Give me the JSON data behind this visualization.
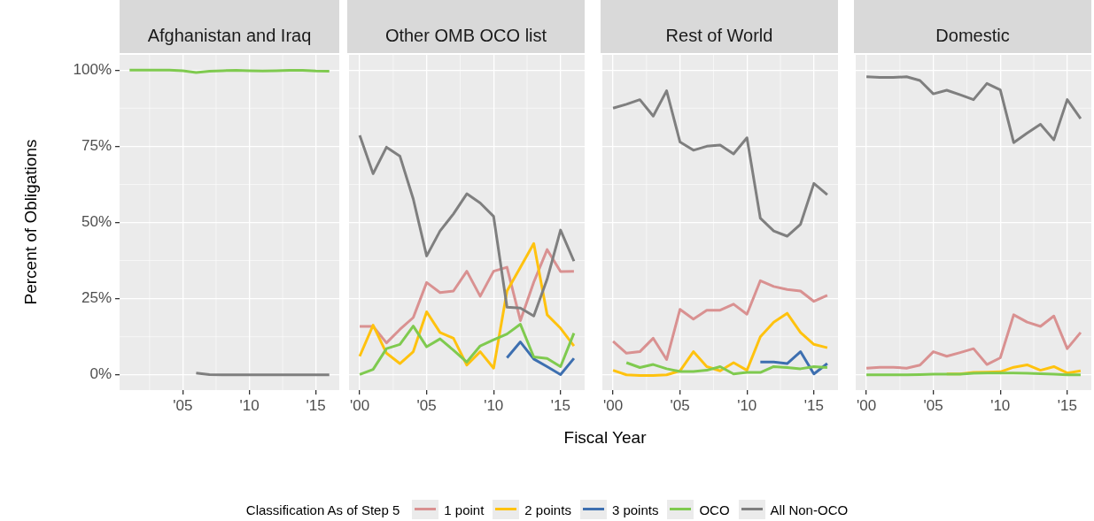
{
  "chart_data": [
    {
      "type": "line",
      "title": "Afghanistan and Iraq",
      "ylabel": "Percent of Obligations",
      "xlim": [
        2000.25,
        2016.75
      ],
      "xticks": [
        {
          "value": 2005,
          "label": "'05"
        },
        {
          "value": 2010,
          "label": "'10"
        },
        {
          "value": 2015,
          "label": "'15"
        }
      ],
      "ylim": [
        -5,
        105
      ],
      "yticks": [
        {
          "value": 0,
          "label": "0%"
        },
        {
          "value": 25,
          "label": "25%"
        },
        {
          "value": 50,
          "label": "50%"
        },
        {
          "value": 75,
          "label": "75%"
        },
        {
          "value": 100,
          "label": "100%"
        }
      ],
      "grid": true,
      "marker": "none",
      "line_style": "solid",
      "series": [
        {
          "color": "#7fca4f",
          "x": [
            2001,
            2002,
            2003,
            2004,
            2005,
            2006,
            2007,
            2008,
            2009,
            2010,
            2011,
            2012,
            2013,
            2014,
            2015,
            2016
          ],
          "values": [
            100,
            100,
            100,
            100,
            99.8,
            99.2,
            99.6,
            99.8,
            99.9,
            99.8,
            99.7,
            99.8,
            99.9,
            99.9,
            99.7,
            99.6
          ]
        },
        {
          "color": "#7f7f7f",
          "x": [
            2006,
            2007,
            2008,
            2009,
            2010,
            2011,
            2012,
            2013,
            2014,
            2015,
            2016
          ],
          "values": [
            0.6,
            0.1,
            0,
            0,
            0,
            0,
            0,
            0,
            0,
            0,
            0
          ]
        }
      ]
    },
    {
      "type": "line",
      "title": "Other OMB OCO list",
      "xlabel": "Fiscal Year",
      "legend": "bottom",
      "legend_title": "Classification As of Step 5",
      "tick_labels": "x",
      "xlim": [
        1999.2,
        2016.8
      ],
      "xticks": [
        {
          "value": 2000,
          "label": "'00"
        },
        {
          "value": 2005,
          "label": "'05"
        },
        {
          "value": 2010,
          "label": "'10"
        },
        {
          "value": 2015,
          "label": "'15"
        }
      ],
      "ylim": [
        -5,
        105
      ],
      "grid": true,
      "marker": "none",
      "line_style": "solid",
      "x": [
        2000,
        2001,
        2002,
        2003,
        2004,
        2005,
        2006,
        2007,
        2008,
        2009,
        2010,
        2011,
        2012,
        2013,
        2014,
        2015,
        2016
      ],
      "series": [
        {
          "name": "1 point",
          "color": "#d99191",
          "values": [
            15.9,
            15.9,
            10.5,
            14.9,
            18.8,
            30.3,
            27,
            27.5,
            34,
            25.8,
            34,
            35.3,
            17.8,
            30.4,
            41.1,
            33.9,
            34
          ]
        },
        {
          "name": "2 points",
          "color": "#ffc20e",
          "values": [
            6.1,
            16.3,
            7.1,
            3.7,
            7.6,
            20.7,
            13.9,
            12,
            3.2,
            7.6,
            2.2,
            27.5,
            35.3,
            43.1,
            19.7,
            15.3,
            9.5
          ]
        },
        {
          "name": "3 points",
          "color": "#3d6fb0",
          "values": [
            null,
            null,
            null,
            null,
            null,
            null,
            null,
            null,
            null,
            null,
            null,
            5.6,
            10.8,
            5.2,
            2.7,
            0.1,
            5.4
          ]
        },
        {
          "name": "OCO",
          "color": "#7fca4f",
          "values": [
            0.1,
            1.8,
            8.6,
            10,
            16,
            9.2,
            11.8,
            8.1,
            4.2,
            9.5,
            11.5,
            13.4,
            16.6,
            5.9,
            5.4,
            2.7,
            13.7
          ]
        },
        {
          "name": "All Non-OCO",
          "color": "#7f7f7f",
          "values": [
            78.6,
            66,
            74.7,
            71.8,
            57.7,
            39,
            47.2,
            52.8,
            59.4,
            56.4,
            52,
            22.2,
            21.9,
            19.3,
            31.4,
            47.5,
            37.3
          ]
        }
      ]
    },
    {
      "type": "line",
      "title": "Rest of World",
      "tick_labels": "x",
      "xlim": [
        1999.2,
        2016.8
      ],
      "xticks": [
        {
          "value": 2000,
          "label": "'00"
        },
        {
          "value": 2005,
          "label": "'05"
        },
        {
          "value": 2010,
          "label": "'10"
        },
        {
          "value": 2015,
          "label": "'15"
        }
      ],
      "ylim": [
        -5,
        105
      ],
      "grid": true,
      "marker": "none",
      "line_style": "solid",
      "x": [
        2000,
        2001,
        2002,
        2003,
        2004,
        2005,
        2006,
        2007,
        2008,
        2009,
        2010,
        2011,
        2012,
        2013,
        2014,
        2015,
        2016
      ],
      "series": [
        {
          "color": "#d99191",
          "values": [
            11,
            7.1,
            7.6,
            12,
            5,
            21.5,
            18.3,
            21.2,
            21.2,
            23.2,
            19.9,
            30.9,
            29,
            28,
            27.5,
            24.1,
            26.1
          ]
        },
        {
          "color": "#ffc20e",
          "values": [
            1.5,
            0,
            -0.2,
            -0.2,
            0,
            1.3,
            7.6,
            2.7,
            1.3,
            4,
            1.5,
            12.5,
            17.3,
            20.2,
            13.9,
            10,
            8.9
          ]
        },
        {
          "color": "#3d6fb0",
          "values": [
            null,
            null,
            null,
            null,
            null,
            null,
            null,
            null,
            null,
            null,
            null,
            4.2,
            4.2,
            3.7,
            7.6,
            0.3,
            3.7
          ]
        },
        {
          "color": "#7fca4f",
          "values": [
            null,
            4,
            2.4,
            3.4,
            2,
            1.1,
            1.1,
            1.5,
            2.7,
            0.3,
            0.8,
            0.8,
            2.7,
            2.4,
            2,
            2.7,
            2.4
          ]
        },
        {
          "color": "#7f7f7f",
          "values": [
            87.5,
            88.8,
            90.3,
            84.9,
            93.2,
            76.4,
            73.7,
            75,
            75.4,
            72.5,
            77.8,
            51.4,
            47.2,
            45.5,
            49.4,
            62.8,
            59.1
          ]
        }
      ]
    },
    {
      "type": "line",
      "title": "Domestic",
      "tick_labels": "x",
      "xlim": [
        1999.2,
        2016.8
      ],
      "xticks": [
        {
          "value": 2000,
          "label": "'00"
        },
        {
          "value": 2005,
          "label": "'05"
        },
        {
          "value": 2010,
          "label": "'10"
        },
        {
          "value": 2015,
          "label": "'15"
        }
      ],
      "ylim": [
        -5,
        105
      ],
      "grid": true,
      "marker": "none",
      "line_style": "solid",
      "x": [
        2000,
        2001,
        2002,
        2003,
        2004,
        2005,
        2006,
        2007,
        2008,
        2009,
        2010,
        2011,
        2012,
        2013,
        2014,
        2015,
        2016
      ],
      "series": [
        {
          "color": "#d99191",
          "values": [
            2.2,
            2.5,
            2.5,
            2.2,
            3.2,
            7.6,
            6.1,
            7.3,
            8.6,
            3.4,
            5.6,
            19.7,
            17.3,
            15.9,
            19.3,
            8.6,
            13.9
          ]
        },
        {
          "color": "#ffc20e",
          "values": [
            null,
            null,
            null,
            null,
            null,
            null,
            0.3,
            0.3,
            0.8,
            0.9,
            1,
            2.5,
            3.3,
            1.5,
            2.7,
            0.6,
            1.3
          ]
        },
        {
          "color": "#7fca4f",
          "values": [
            0,
            0,
            0,
            0,
            0.1,
            0.2,
            0.2,
            0.2,
            0.5,
            0.6,
            0.6,
            0.6,
            0.5,
            0.4,
            0.2,
            0,
            0
          ]
        },
        {
          "color": "#7f7f7f",
          "values": [
            97.8,
            97.6,
            97.6,
            97.8,
            96.6,
            92.2,
            93.4,
            91.9,
            90.3,
            95.6,
            93.5,
            76.2,
            79.3,
            82.2,
            77.1,
            90.3,
            84.1
          ]
        }
      ]
    }
  ]
}
